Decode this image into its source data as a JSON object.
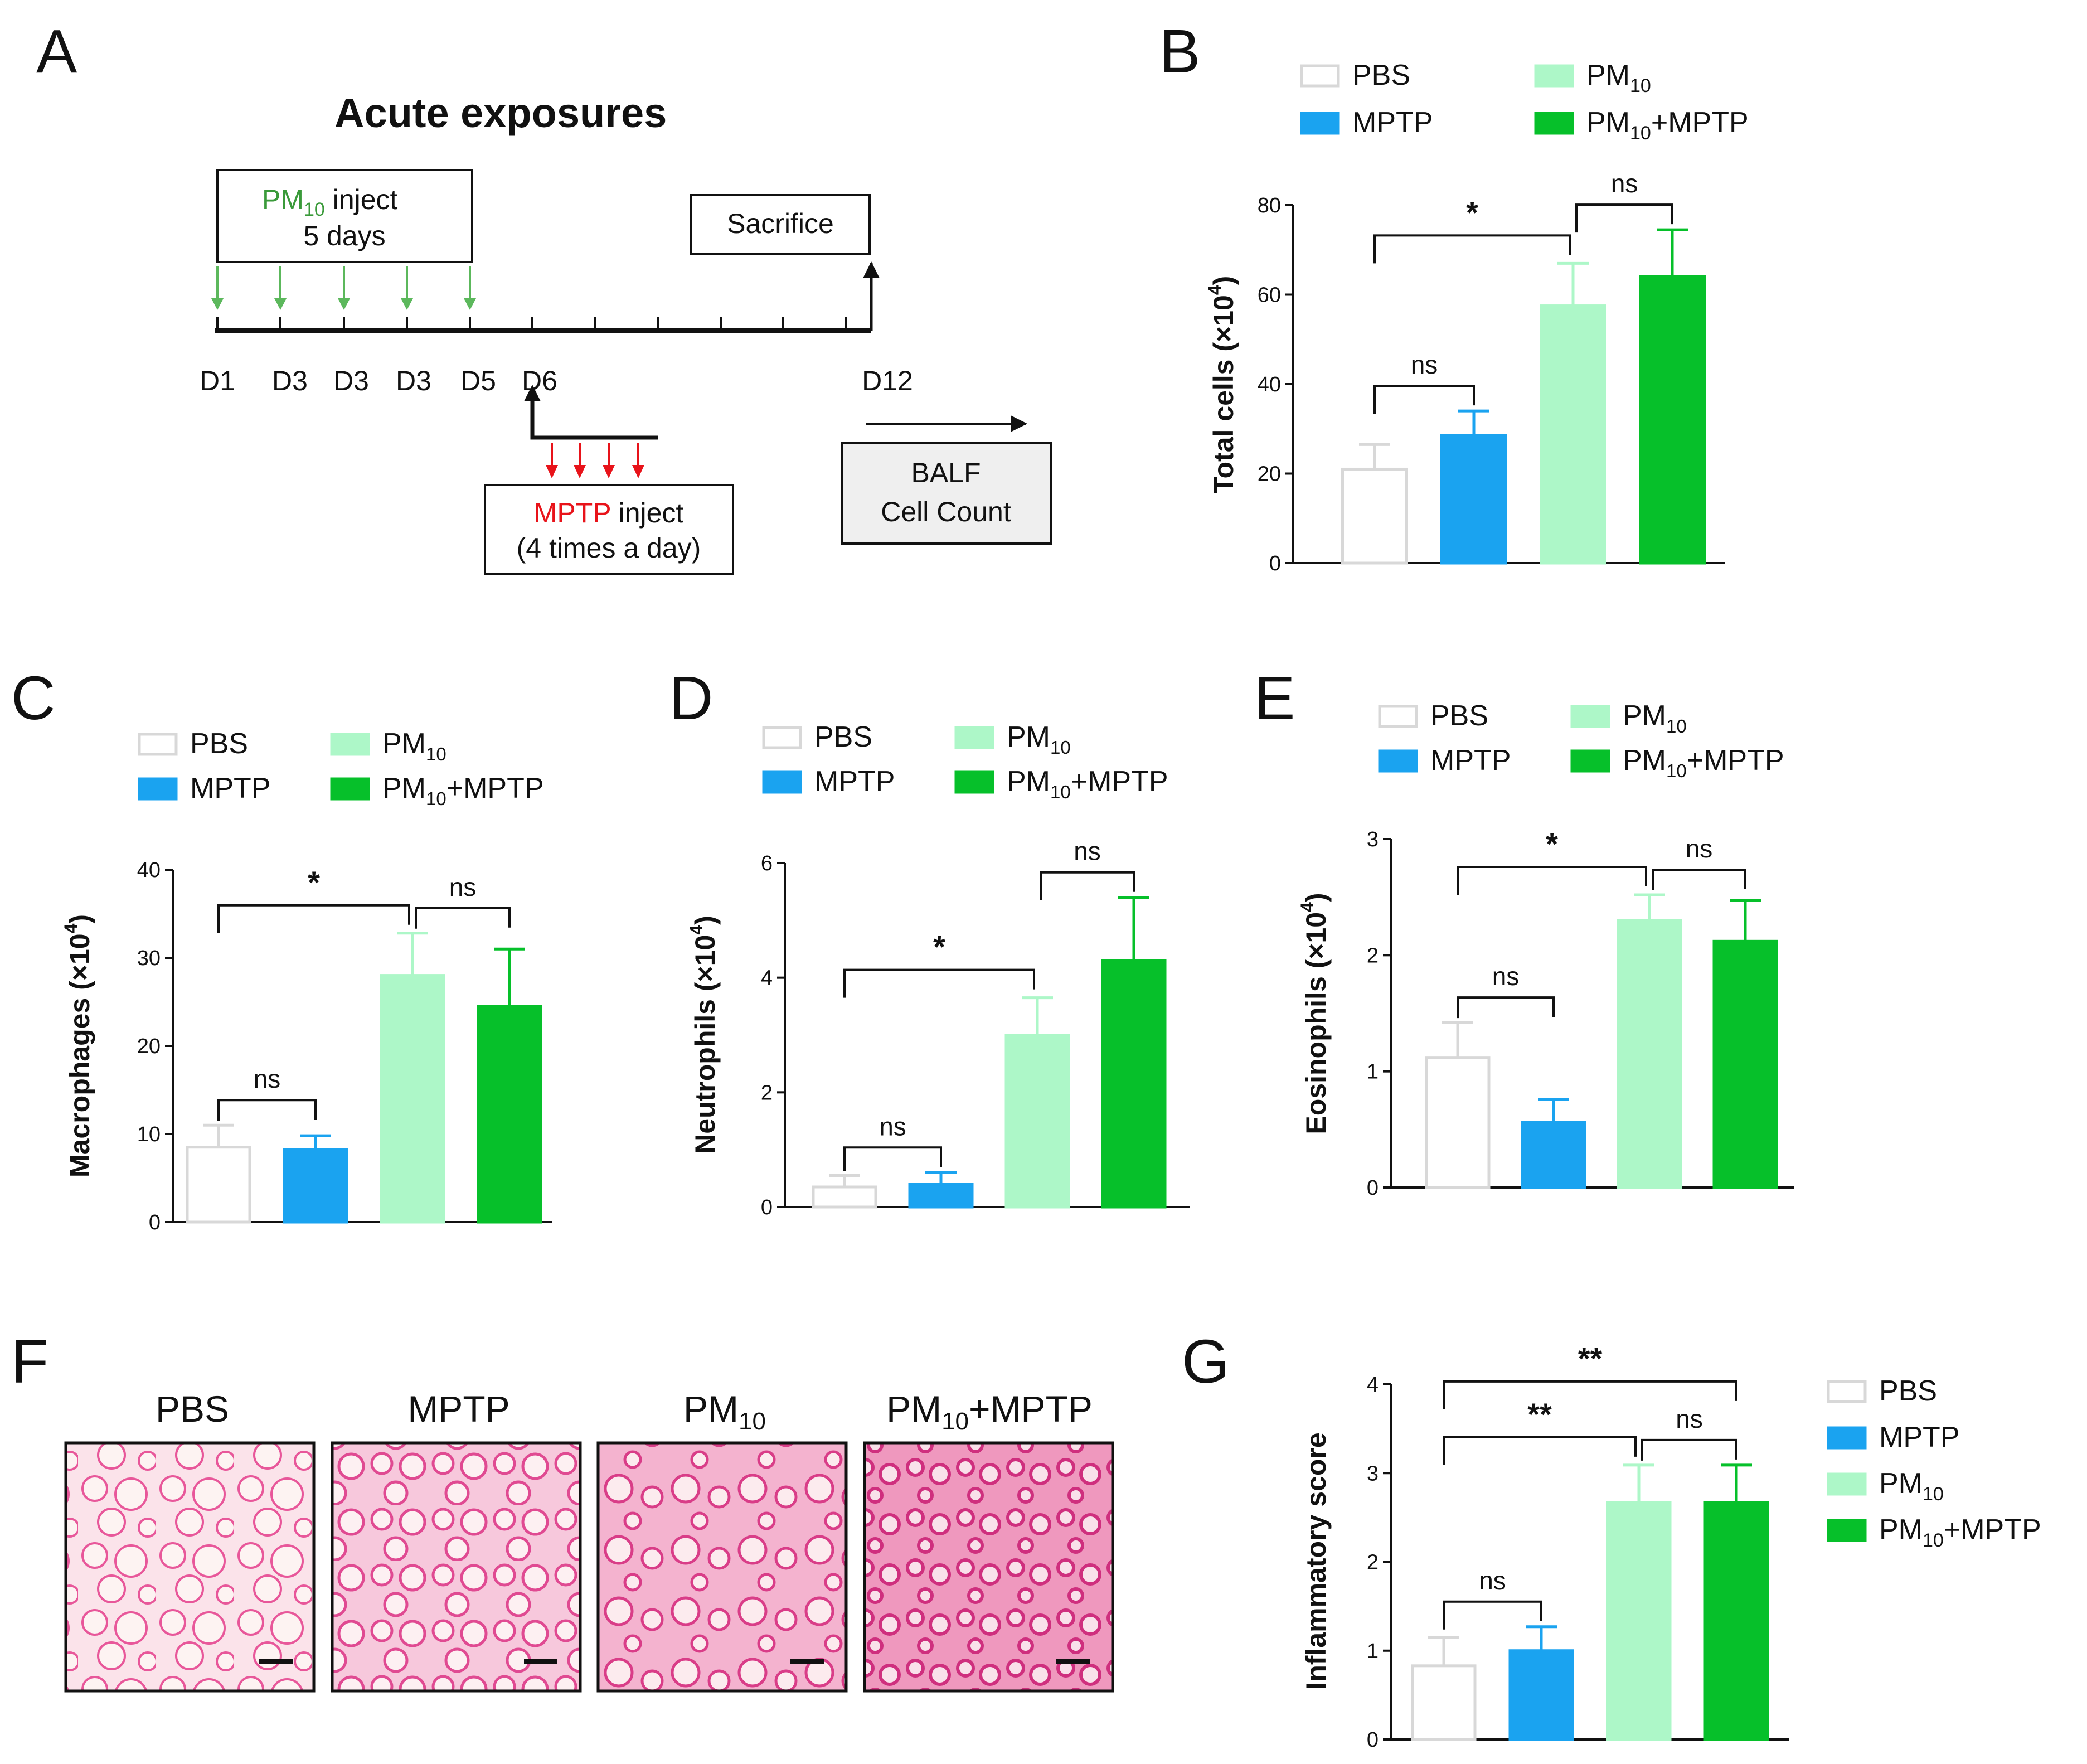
{
  "colors": {
    "PBS": "#ffffff",
    "PBS_stroke": "#d8d8d8",
    "MPTP": "#1aa3f0",
    "PM10": "#adf7c8",
    "PM10_MPTP": "#06c02a",
    "green_text": "#3a9a3a",
    "red": "#e8131a"
  },
  "panels": {
    "A": "A",
    "B": "B",
    "C": "C",
    "D": "D",
    "E": "E",
    "F": "F",
    "G": "G"
  },
  "timeline": {
    "title": "Acute exposures",
    "pm_box": {
      "pm": "PM",
      "sub": "10",
      "inject": " inject",
      "days": "5 days"
    },
    "sacrifice": "Sacrifice",
    "day_labels": [
      "D1",
      "D3",
      "D3",
      "D3",
      "D5",
      "D6"
    ],
    "end_label": "D12",
    "mptp_box": {
      "mptp": "MPTP",
      "inject": " inject",
      "times": "(4 times a day)"
    },
    "balf": {
      "line1": "BALF",
      "line2": "Cell Count"
    }
  },
  "legend": {
    "pbs": "PBS",
    "mptp": "MPTP",
    "pm_base": "PM",
    "pm_sub": "10",
    "pm_mptp_suffix": "+MPTP"
  },
  "chart_data": [
    {
      "panel": "B",
      "type": "bar",
      "categories": [
        "PBS",
        "MPTP",
        "PM10",
        "PM10+MPTP"
      ],
      "values": [
        21,
        28.5,
        57.5,
        64
      ],
      "errors": [
        5.5,
        5.5,
        9.5,
        10.5
      ],
      "ylabel": "Total cells (×10^4)",
      "ylabel_text": "Total cells (×10",
      "ylabel_unit": ")",
      "ylabel_exp": "4",
      "ylim": [
        0,
        80
      ],
      "yticks": [
        "0",
        "20",
        "40",
        "60",
        "80"
      ],
      "comparisons": [
        {
          "a": 0,
          "b": 1,
          "label": "ns"
        },
        {
          "a": 0,
          "b": 2,
          "label": "*"
        },
        {
          "a": 2,
          "b": 3,
          "label": "ns"
        }
      ]
    },
    {
      "panel": "C",
      "type": "bar",
      "categories": [
        "PBS",
        "MPTP",
        "PM10",
        "PM10+MPTP"
      ],
      "values": [
        8.5,
        8.2,
        28,
        24.5
      ],
      "errors": [
        2.5,
        1.6,
        4.8,
        6.5
      ],
      "ylabel": "Macrophages (×10^4)",
      "ylabel_text": "Macrophages (×10",
      "ylabel_unit": ")",
      "ylabel_exp": "4",
      "ylim": [
        0,
        40
      ],
      "yticks": [
        "0",
        "10",
        "20",
        "30",
        "40"
      ],
      "comparisons": [
        {
          "a": 0,
          "b": 1,
          "label": "ns"
        },
        {
          "a": 0,
          "b": 2,
          "label": "*"
        },
        {
          "a": 2,
          "b": 3,
          "label": "ns"
        }
      ]
    },
    {
      "panel": "D",
      "type": "bar",
      "categories": [
        "PBS",
        "MPTP",
        "PM10",
        "PM10+MPTP"
      ],
      "values": [
        0.35,
        0.4,
        3.0,
        4.3
      ],
      "errors": [
        0.2,
        0.2,
        0.65,
        1.1
      ],
      "ylabel": "Neutrophils (×10^4)",
      "ylabel_text": "Neutrophils (×10",
      "ylabel_unit": ")",
      "ylabel_exp": "4",
      "ylim": [
        0,
        6
      ],
      "yticks": [
        "0",
        "2",
        "4",
        "6"
      ],
      "comparisons": [
        {
          "a": 0,
          "b": 1,
          "label": "ns"
        },
        {
          "a": 0,
          "b": 2,
          "label": "*"
        },
        {
          "a": 2,
          "b": 3,
          "label": "ns"
        }
      ]
    },
    {
      "panel": "E",
      "type": "bar",
      "categories": [
        "PBS",
        "MPTP",
        "PM10",
        "PM10+MPTP"
      ],
      "values": [
        1.12,
        0.56,
        2.3,
        2.12
      ],
      "errors": [
        0.3,
        0.2,
        0.22,
        0.35
      ],
      "ylabel": "Eosinophils (×10^4)",
      "ylabel_text": "Eosinophils (×10",
      "ylabel_unit": ")",
      "ylabel_exp": "4",
      "ylim": [
        0,
        3
      ],
      "yticks": [
        "0",
        "1",
        "2",
        "3"
      ],
      "comparisons": [
        {
          "a": 0,
          "b": 1,
          "label": "ns"
        },
        {
          "a": 0,
          "b": 2,
          "label": "*"
        },
        {
          "a": 2,
          "b": 3,
          "label": "ns"
        }
      ]
    },
    {
      "panel": "G",
      "type": "bar",
      "categories": [
        "PBS",
        "MPTP",
        "PM10",
        "PM10+MPTP"
      ],
      "values": [
        0.83,
        1.0,
        2.67,
        2.67
      ],
      "errors": [
        0.32,
        0.27,
        0.42,
        0.42
      ],
      "ylabel": "Inflammatory score",
      "ylabel_text": "Inflammatory score",
      "ylabel_unit": "",
      "ylabel_exp": "",
      "ylim": [
        0,
        4
      ],
      "yticks": [
        "0",
        "1",
        "2",
        "3",
        "4"
      ],
      "comparisons": [
        {
          "a": 0,
          "b": 1,
          "label": "ns"
        },
        {
          "a": 0,
          "b": 2,
          "label": "**"
        },
        {
          "a": 2,
          "b": 3,
          "label": "ns"
        },
        {
          "a": 0,
          "b": 3,
          "label": "**"
        }
      ]
    }
  ],
  "histology": {
    "labels": [
      "PBS",
      "MPTP",
      "PM",
      "PM"
    ],
    "label_subs": [
      "",
      "",
      "10",
      "10"
    ],
    "label_suffix": [
      "",
      "",
      "",
      "+MPTP"
    ]
  }
}
